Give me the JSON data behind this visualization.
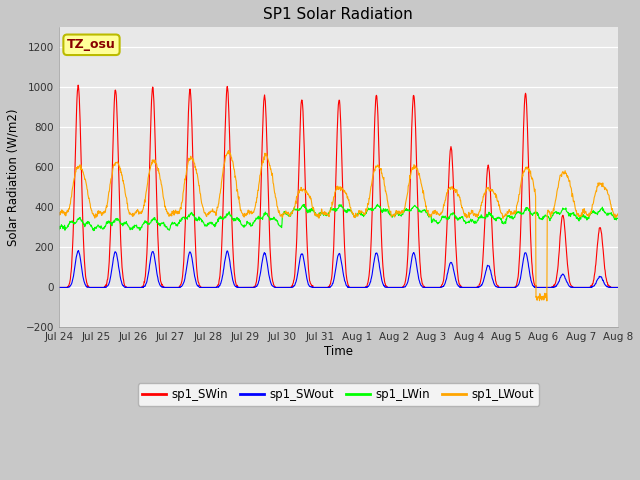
{
  "title": "SP1 Solar Radiation",
  "ylabel": "Solar Radiation (W/m2)",
  "xlabel": "Time",
  "ylim": [
    -200,
    1300
  ],
  "yticks": [
    -200,
    0,
    200,
    400,
    600,
    800,
    1000,
    1200
  ],
  "fig_bg_color": "#c8c8c8",
  "plot_bg_color": "#e8e8e8",
  "colors": {
    "SWin": "#ff0000",
    "SWout": "#0000ff",
    "LWin": "#00ff00",
    "LWout": "#ffa500"
  },
  "legend_labels": [
    "sp1_SWin",
    "sp1_SWout",
    "sp1_LWin",
    "sp1_LWout"
  ],
  "tz_label": "TZ_osu",
  "xtick_labels": [
    "Jul 24",
    "Jul 25",
    "Jul 26",
    "Jul 27",
    "Jul 28",
    "Jul 29",
    "Jul 30",
    "Jul 31",
    "Aug 1",
    "Aug 2",
    "Aug 3",
    "Aug 4",
    "Aug 5",
    "Aug 6",
    "Aug 7",
    "Aug 8"
  ],
  "n_days": 15,
  "dt_hours": 0.25
}
